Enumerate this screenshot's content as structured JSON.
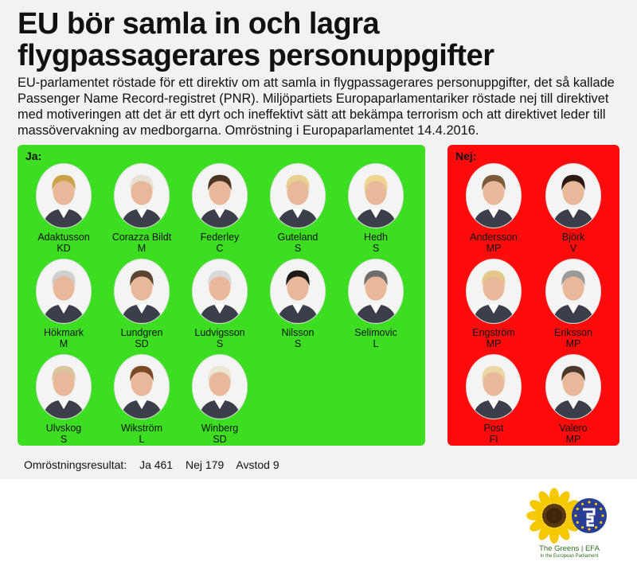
{
  "title_line1": "EU bör samla in och lagra",
  "title_line2": "flygpassagerares personuppgifter",
  "intro": "EU-parlamentet röstade för ett direktiv om att samla in flygpassagerares personuppgifter, det så kallade Passenger Name Record-registret (PNR). Miljöpartiets Europaparlamentariker röstade nej till direktivet med motiveringen att det är ett dyrt och ineffektivt sätt att bekämpa terrorism och att direktivet leder till massövervakning av medborgarna. Omröstning i Europaparlamentet 14.4.2016.",
  "yes": {
    "label": "Ja:",
    "color": "#3ddd22",
    "members": [
      {
        "name": "Adaktusson",
        "party": "KD",
        "hair": "#c9a24a"
      },
      {
        "name": "Corazza Bildt",
        "party": "M",
        "hair": "#e6e1d4"
      },
      {
        "name": "Federley",
        "party": "C",
        "hair": "#4a3423"
      },
      {
        "name": "Guteland",
        "party": "S",
        "hair": "#e8d090"
      },
      {
        "name": "Hedh",
        "party": "S",
        "hair": "#edd58f"
      },
      {
        "name": "Hökmark",
        "party": "M",
        "hair": "#cfcfcf"
      },
      {
        "name": "Lundgren",
        "party": "SD",
        "hair": "#5a4530"
      },
      {
        "name": "Ludvigsson",
        "party": "S",
        "hair": "#d9d9d9"
      },
      {
        "name": "Nilsson",
        "party": "S",
        "hair": "#1e1a16"
      },
      {
        "name": "Selimovic",
        "party": "L",
        "hair": "#6f6f6f"
      },
      {
        "name": "Ulvskog",
        "party": "S",
        "hair": "#d8c59a"
      },
      {
        "name": "Wikström",
        "party": "L",
        "hair": "#7a4a26"
      },
      {
        "name": "Winberg",
        "party": "SD",
        "hair": "#ece6d6"
      }
    ]
  },
  "no": {
    "label": "Nej:",
    "color": "#ff0b0b",
    "members": [
      {
        "name": "Andersson",
        "party": "MP",
        "hair": "#7a5a3a"
      },
      {
        "name": "Björk",
        "party": "V",
        "hair": "#2a1a12"
      },
      {
        "name": "Engström",
        "party": "MP",
        "hair": "#e4c98a"
      },
      {
        "name": "Eriksson",
        "party": "MP",
        "hair": "#9a9a9a"
      },
      {
        "name": "Post",
        "party": "FI",
        "hair": "#e9d7a6"
      },
      {
        "name": "Valero",
        "party": "MP",
        "hair": "#4a3a2e"
      }
    ]
  },
  "results": {
    "label": "Omröstningsresultat:",
    "yes": "Ja 461",
    "no": "Nej 179",
    "abstain": "Avstod 9"
  },
  "logo": {
    "name": "The Greens | EFA",
    "sub": "in the European Parliament",
    "icon": "sunflower-logo"
  }
}
